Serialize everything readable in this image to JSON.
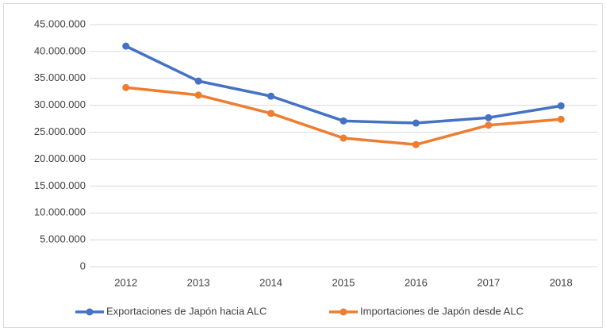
{
  "chart_data": {
    "type": "line",
    "categories": [
      "2012",
      "2013",
      "2014",
      "2015",
      "2016",
      "2017",
      "2018"
    ],
    "series": [
      {
        "name": "Exportaciones de Japón hacia ALC",
        "color": "#4472c4",
        "values": [
          41000000,
          34500000,
          31700000,
          27100000,
          26700000,
          27700000,
          29900000
        ]
      },
      {
        "name": "Importaciones de Japón desde ALC",
        "color": "#ed7d31",
        "values": [
          33300000,
          31900000,
          28500000,
          23900000,
          22700000,
          26300000,
          27400000
        ]
      }
    ],
    "ylim": [
      0,
      45000000
    ],
    "yticks": [
      0,
      {
        "value": 5000000,
        "label": "5.000.000"
      },
      {
        "value": 10000000,
        "label": "10.000.000"
      },
      {
        "value": 15000000,
        "label": "15.000.000"
      },
      {
        "value": 20000000,
        "label": "20.000.000"
      },
      {
        "value": 25000000,
        "label": "25.000.000"
      },
      {
        "value": 30000000,
        "label": "30.000.000"
      },
      {
        "value": 35000000,
        "label": "35.000.000"
      },
      {
        "value": 40000000,
        "label": "40.000.000"
      },
      {
        "value": 45000000,
        "label": "45.000.000"
      }
    ],
    "grid": true,
    "legend": "bottom"
  }
}
